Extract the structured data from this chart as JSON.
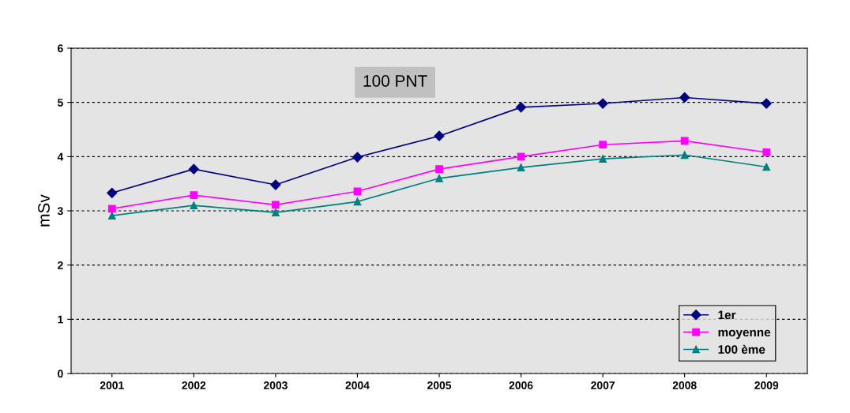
{
  "chart_data": {
    "type": "line",
    "ylabel": "mSv",
    "annotations": [
      "100 PNT"
    ],
    "categories": [
      "2001",
      "2002",
      "2003",
      "2004",
      "2005",
      "2006",
      "2007",
      "2008",
      "2009"
    ],
    "series": [
      {
        "name": "1er",
        "color": "#000080",
        "marker": "diamond",
        "values": [
          3.33,
          3.77,
          3.48,
          3.99,
          4.38,
          4.91,
          4.98,
          5.09,
          4.98
        ]
      },
      {
        "name": "moyenne",
        "color": "#ff00ff",
        "marker": "square",
        "values": [
          3.04,
          3.29,
          3.11,
          3.36,
          3.77,
          4.0,
          4.22,
          4.29,
          4.08
        ]
      },
      {
        "name": "100 ème",
        "color": "#008080",
        "marker": "triangle",
        "values": [
          2.91,
          3.1,
          2.97,
          3.17,
          3.6,
          3.8,
          3.96,
          4.03,
          3.81
        ]
      }
    ],
    "ylim": [
      0,
      6
    ],
    "yticks": [
      0,
      1,
      2,
      3,
      4,
      5,
      6
    ],
    "grid": "y",
    "legend": "bottom right",
    "line_style": "solid"
  }
}
